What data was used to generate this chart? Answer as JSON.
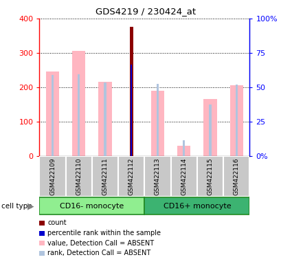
{
  "title": "GDS4219 / 230424_at",
  "samples": [
    "GSM422109",
    "GSM422110",
    "GSM422111",
    "GSM422112",
    "GSM422113",
    "GSM422114",
    "GSM422115",
    "GSM422116"
  ],
  "cell_types": [
    {
      "label": "CD16- monocyte",
      "start": 0,
      "end": 3
    },
    {
      "label": "CD16+ monocyte",
      "start": 4,
      "end": 7
    }
  ],
  "value_absent": [
    245,
    305,
    215,
    0,
    190,
    30,
    165,
    205
  ],
  "value_present": [
    0,
    0,
    0,
    375,
    0,
    0,
    0,
    0
  ],
  "rank_absent_pct": [
    58.75,
    59.25,
    53.25,
    0,
    52.5,
    11.25,
    37.5,
    51.75
  ],
  "rank_present_pct": [
    0,
    0,
    0,
    66.5,
    0,
    0,
    0,
    0
  ],
  "count_value": 375,
  "count_sample": 3,
  "percentile_value": 66.5,
  "percentile_sample": 3,
  "ylim_left": [
    0,
    400
  ],
  "ylim_right": [
    0,
    100
  ],
  "yticks_left": [
    0,
    100,
    200,
    300,
    400
  ],
  "ytick_left_labels": [
    "0",
    "100",
    "200",
    "300",
    "400"
  ],
  "yticks_right": [
    0,
    25,
    50,
    75,
    100
  ],
  "ytick_right_labels": [
    "0%",
    "25",
    "50",
    "75",
    "100%"
  ],
  "color_count": "#8B0000",
  "color_percentile": "#0000CD",
  "color_value_absent": "#FFB6C1",
  "color_rank_absent": "#B0C4DE",
  "green_cd16minus": "#90EE90",
  "green_cd16plus": "#3CB371",
  "gray_sample": "#C8C8C8",
  "value_bar_width": 0.5,
  "rank_bar_width": 0.08,
  "count_bar_width": 0.12,
  "percentile_bar_width": 0.06
}
